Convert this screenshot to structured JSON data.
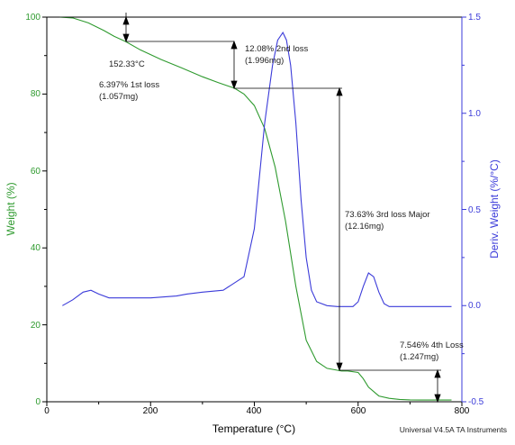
{
  "chart_data": {
    "type": "line",
    "xlabel": "Temperature (°C)",
    "ylabel_left": "Weight (%)",
    "ylabel_right": "Deriv. Weight (%/°C)",
    "xlim": [
      0,
      800
    ],
    "ylim_left": [
      0,
      100
    ],
    "ylim_right": [
      -0.5,
      1.5
    ],
    "x_ticks": [
      "0",
      "200",
      "400",
      "600",
      "800"
    ],
    "y_left_ticks": [
      "0",
      "20",
      "40",
      "60",
      "80",
      "100"
    ],
    "y_right_ticks": [
      "-0.5",
      "0.0",
      "0.5",
      "1.0",
      "1.5"
    ],
    "footer": "Universal V4.5A TA Instruments",
    "colors": {
      "weight": "#2e9a2e",
      "deriv": "#3b3bd9",
      "left_axis": "#2e9a2e",
      "right_axis": "#3b3bd9"
    },
    "series": [
      {
        "axis": "left",
        "x": [
          25,
          50,
          80,
          110,
          130,
          152.33,
          180,
          220,
          260,
          300,
          330,
          362,
          380,
          400,
          420,
          440,
          460,
          480,
          500,
          520,
          540,
          560,
          568,
          580,
          600,
          610,
          620,
          640,
          660,
          680,
          700,
          720,
          760,
          780
        ],
        "y": [
          100,
          99.8,
          98.5,
          96.5,
          95,
          93.6,
          91.5,
          89,
          86.8,
          84.5,
          83,
          81.5,
          80,
          77,
          71,
          61,
          47,
          30,
          16,
          10.5,
          8.7,
          8.2,
          8,
          8,
          7.6,
          6,
          3.8,
          1.5,
          0.9,
          0.6,
          0.5,
          0.45,
          0.45,
          0.45
        ]
      },
      {
        "axis": "right",
        "x": [
          30,
          50,
          70,
          85,
          100,
          120,
          150,
          200,
          250,
          270,
          300,
          340,
          380,
          400,
          420,
          435,
          445,
          455,
          462,
          470,
          480,
          490,
          500,
          510,
          520,
          540,
          560,
          590,
          600,
          610,
          620,
          630,
          640,
          650,
          660,
          680,
          700,
          780
        ],
        "y": [
          0.0,
          0.03,
          0.07,
          0.08,
          0.06,
          0.04,
          0.04,
          0.04,
          0.05,
          0.06,
          0.07,
          0.08,
          0.15,
          0.4,
          0.95,
          1.25,
          1.38,
          1.42,
          1.38,
          1.25,
          0.95,
          0.55,
          0.25,
          0.08,
          0.02,
          0.0,
          -0.005,
          -0.005,
          0.02,
          0.1,
          0.17,
          0.15,
          0.07,
          0.01,
          -0.005,
          -0.005,
          -0.005,
          -0.005
        ]
      }
    ],
    "annotations": [
      {
        "text": "152.33°C"
      },
      {
        "line1": "6.397% 1st loss",
        "line2": "(1.057mg)"
      },
      {
        "line1": "12.08% 2nd loss",
        "line2": "(1.996mg)"
      },
      {
        "line1": "73.63% 3rd loss Major",
        "line2": "(12.16mg)"
      },
      {
        "line1": "7.546% 4th Loss",
        "line2": "(1.247mg)"
      }
    ]
  }
}
